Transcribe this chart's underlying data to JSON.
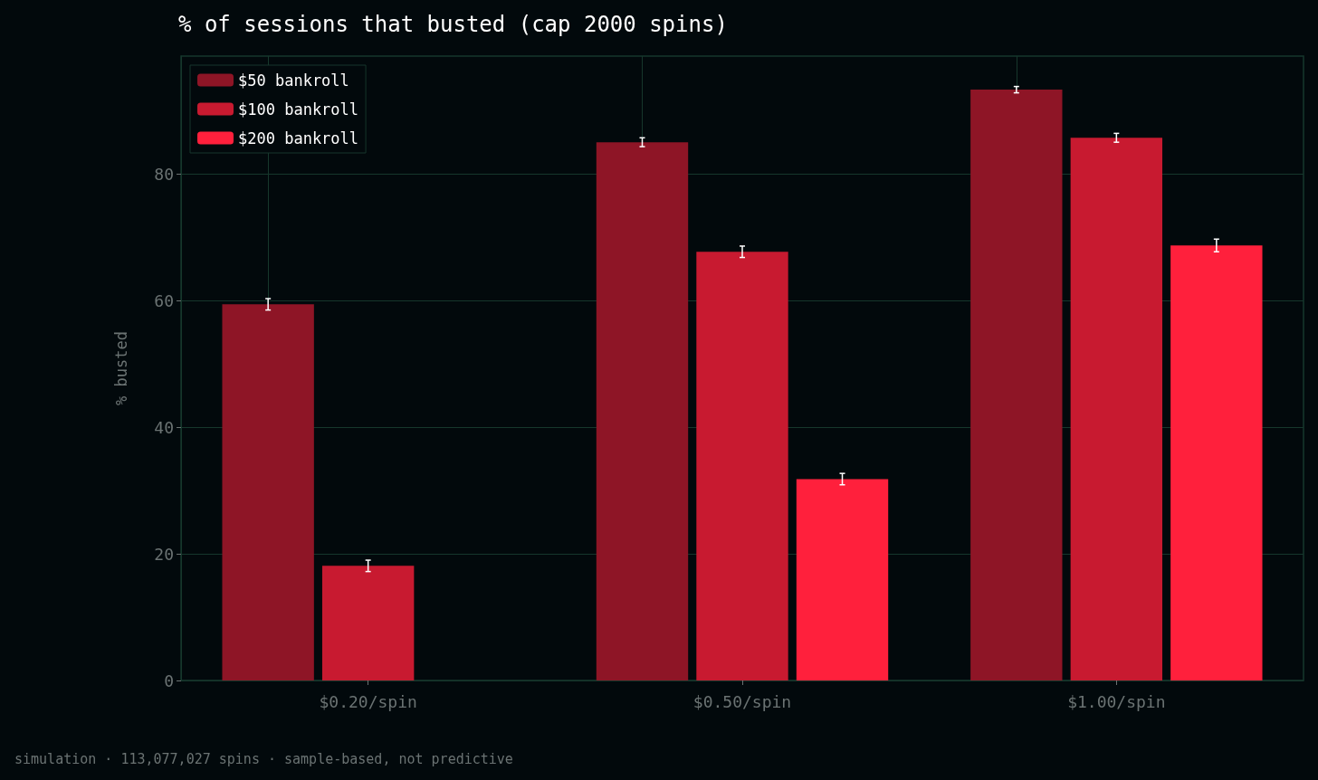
{
  "chart_data": {
    "type": "bar",
    "title": "% of sessions that busted (cap 2000 spins)",
    "ylabel": "% busted",
    "categories": [
      "$0.20/spin",
      "$0.50/spin",
      "$1.00/spin"
    ],
    "series": [
      {
        "name": "$50 bankroll",
        "color": "#8e1526",
        "values": [
          59.4,
          85.0,
          93.3
        ],
        "errors": [
          0.9,
          0.7,
          0.5
        ]
      },
      {
        "name": "$100 bankroll",
        "color": "#c81a30",
        "values": [
          18.1,
          67.7,
          85.7
        ],
        "errors": [
          0.9,
          0.9,
          0.7
        ]
      },
      {
        "name": "$200 bankroll",
        "color": "#ff203c",
        "values": [
          0,
          31.8,
          68.7
        ],
        "errors": [
          null,
          0.9,
          1.0
        ]
      }
    ],
    "ylim": [
      0,
      98.6
    ],
    "yticks": [
      0,
      20,
      40,
      60,
      80
    ],
    "grid": true,
    "legend": "top left",
    "annotations": [
      "simulation · 113,077,027 spins · sample-based, not predictive"
    ]
  }
}
